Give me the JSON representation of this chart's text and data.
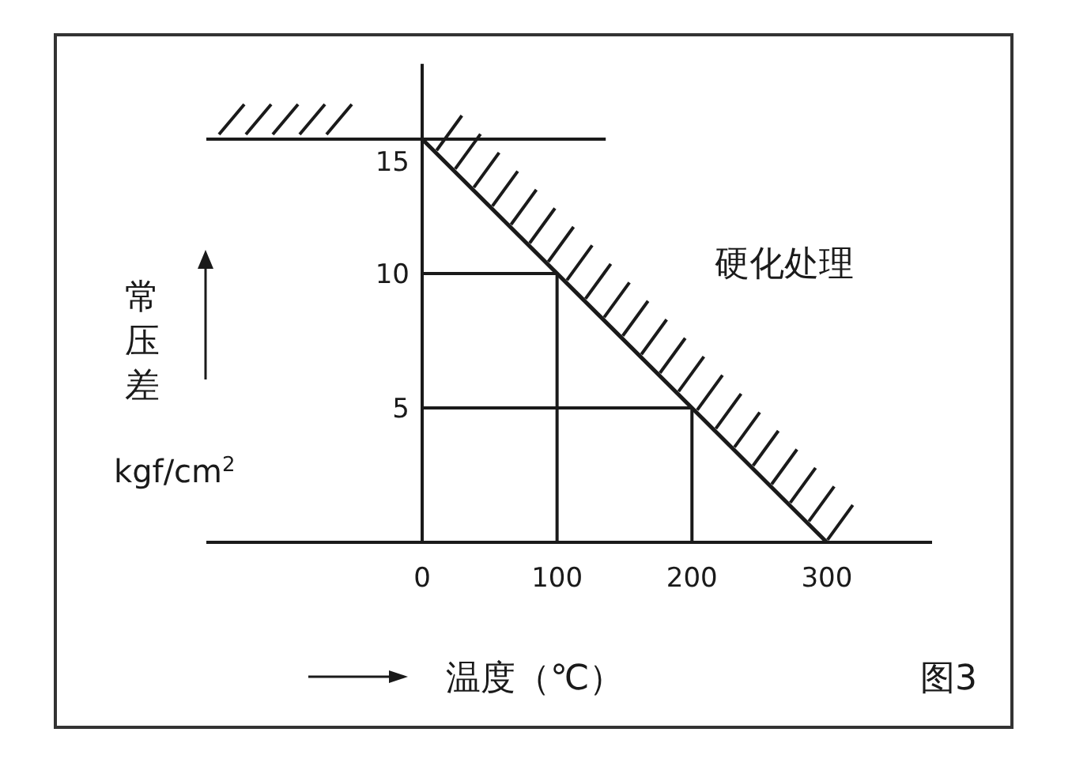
{
  "chart_data": {
    "type": "line",
    "xlabel": "温度（℃）",
    "ylabel": "常压差 kgf/cm$^{2}$",
    "annotations": [
      "硬化处理",
      "图3"
    ],
    "series": [
      {
        "color": "#1a1a1a",
        "x": [
          0,
          300
        ],
        "values": [
          15,
          0
        ]
      },
      {
        "color": "#1a1a1a",
        "x": [
          0,
          100,
          100
        ],
        "values": [
          10,
          10,
          0
        ]
      },
      {
        "color": "#1a1a1a",
        "x": [
          0,
          200,
          200
        ],
        "values": [
          5,
          5,
          0
        ]
      }
    ],
    "xlim": [
      -160,
      378
    ],
    "ylim": [
      0,
      17.8
    ],
    "xticks": [
      0,
      100,
      200,
      300
    ],
    "yticks": [
      5,
      10,
      15
    ],
    "ref_lines": [
      {
        "axis": "y",
        "value": 15
      }
    ]
  }
}
